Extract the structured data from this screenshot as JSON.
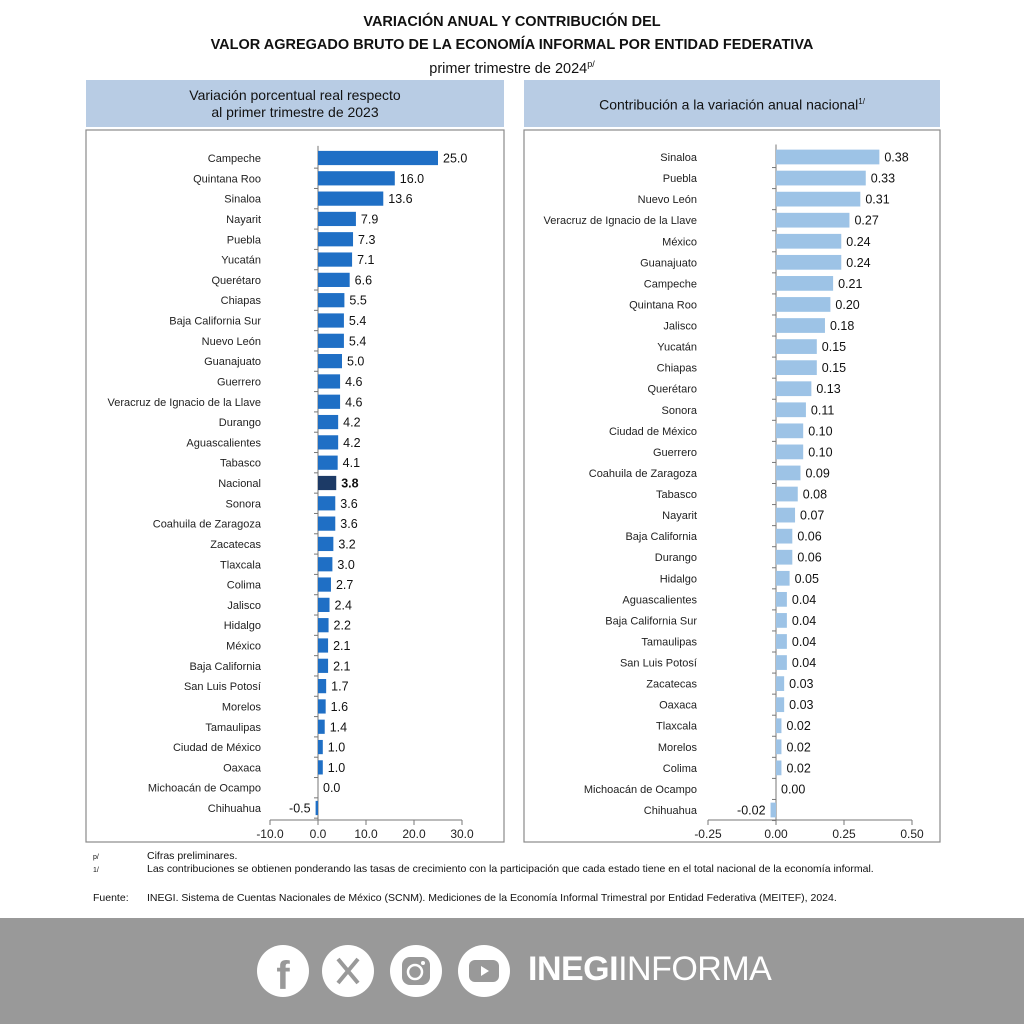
{
  "header": {
    "title_line1": "VARIACIÓN ANUAL Y CONTRIBUCIÓN DEL",
    "title_line2": "VALOR AGREGADO BRUTO DE LA ECONOMÍA INFORMAL POR ENTIDAD FEDERATIVA",
    "subtitle": "primer trimestre de 2024",
    "subtitle_sup": "p/"
  },
  "chart_data": [
    {
      "type": "bar",
      "orientation": "horizontal",
      "title_line1": "Variación porcentual real respecto",
      "title_line2": "al primer trimestre de 2023",
      "xlim": [
        -10,
        30
      ],
      "xticks": [
        -10,
        0,
        10,
        20,
        30
      ],
      "xtick_labels": [
        "-10.0",
        "0.0",
        "10.0",
        "20.0",
        "30.0"
      ],
      "color": "#1f6fc5",
      "highlight_color": "#1c3a66",
      "highlight": "Nacional",
      "categories": [
        "Campeche",
        "Quintana Roo",
        "Sinaloa",
        "Nayarit",
        "Puebla",
        "Yucatán",
        "Querétaro",
        "Chiapas",
        "Baja California Sur",
        "Nuevo León",
        "Guanajuato",
        "Guerrero",
        "Veracruz de Ignacio de la Llave",
        "Durango",
        "Aguascalientes",
        "Tabasco",
        "Nacional",
        "Sonora",
        "Coahuila de Zaragoza",
        "Zacatecas",
        "Tlaxcala",
        "Colima",
        "Jalisco",
        "Hidalgo",
        "México",
        "Baja California",
        "San Luis Potosí",
        "Morelos",
        "Tamaulipas",
        "Ciudad de México",
        "Oaxaca",
        "Michoacán de Ocampo",
        "Chihuahua"
      ],
      "values": [
        25.0,
        16.0,
        13.6,
        7.9,
        7.3,
        7.1,
        6.6,
        5.5,
        5.4,
        5.4,
        5.0,
        4.6,
        4.6,
        4.2,
        4.2,
        4.1,
        3.8,
        3.6,
        3.6,
        3.2,
        3.0,
        2.7,
        2.4,
        2.2,
        2.1,
        2.1,
        1.7,
        1.6,
        1.4,
        1.0,
        1.0,
        0.0,
        -0.5
      ],
      "labels": [
        "25.0",
        "16.0",
        "13.6",
        "7.9",
        "7.3",
        "7.1",
        "6.6",
        "5.5",
        "5.4",
        "5.4",
        "5.0",
        "4.6",
        "4.6",
        "4.2",
        "4.2",
        "4.1",
        "3.8",
        "3.6",
        "3.6",
        "3.2",
        "3.0",
        "2.7",
        "2.4",
        "2.2",
        "2.1",
        "2.1",
        "1.7",
        "1.6",
        "1.4",
        "1.0",
        "1.0",
        "0.0",
        "-0.5"
      ]
    },
    {
      "type": "bar",
      "orientation": "horizontal",
      "title": "Contribución a la variación anual nacional",
      "title_sup": "1/",
      "xlim": [
        -0.25,
        0.5
      ],
      "xticks": [
        -0.25,
        0,
        0.25,
        0.5
      ],
      "xtick_labels": [
        "-0.25",
        "0.00",
        "0.25",
        "0.50"
      ],
      "color": "#9dc3e6",
      "categories": [
        "Sinaloa",
        "Puebla",
        "Nuevo León",
        "Veracruz de Ignacio de la Llave",
        "México",
        "Guanajuato",
        "Campeche",
        "Quintana Roo",
        "Jalisco",
        "Yucatán",
        "Chiapas",
        "Querétaro",
        "Sonora",
        "Ciudad de México",
        "Guerrero",
        "Coahuila de Zaragoza",
        "Tabasco",
        "Nayarit",
        "Baja California",
        "Durango",
        "Hidalgo",
        "Aguascalientes",
        "Baja California Sur",
        "Tamaulipas",
        "San Luis Potosí",
        "Zacatecas",
        "Oaxaca",
        "Tlaxcala",
        "Morelos",
        "Colima",
        "Michoacán de Ocampo",
        "Chihuahua"
      ],
      "values": [
        0.38,
        0.33,
        0.31,
        0.27,
        0.24,
        0.24,
        0.21,
        0.2,
        0.18,
        0.15,
        0.15,
        0.13,
        0.11,
        0.1,
        0.1,
        0.09,
        0.08,
        0.07,
        0.06,
        0.06,
        0.05,
        0.04,
        0.04,
        0.04,
        0.04,
        0.03,
        0.03,
        0.02,
        0.02,
        0.02,
        0.0,
        -0.02
      ],
      "labels": [
        "0.38",
        "0.33",
        "0.31",
        "0.27",
        "0.24",
        "0.24",
        "0.21",
        "0.20",
        "0.18",
        "0.15",
        "0.15",
        "0.13",
        "0.11",
        "0.10",
        "0.10",
        "0.09",
        "0.08",
        "0.07",
        "0.06",
        "0.06",
        "0.05",
        "0.04",
        "0.04",
        "0.04",
        "0.04",
        "0.03",
        "0.03",
        "0.02",
        "0.02",
        "0.02",
        "0.00",
        "-0.02"
      ]
    }
  ],
  "notes": {
    "p_mark": "p/",
    "p_text": "Cifras preliminares.",
    "n1_mark": "1/",
    "n1_text": "Las contribuciones se obtienen ponderando las tasas de crecimiento con la participación que cada estado tiene en el total nacional de la economía informal.",
    "source_label": "Fuente:",
    "source_text": "INEGI. Sistema de Cuentas Nacionales de México (SCNM). Mediciones de la Economía Informal Trimestral por Entidad Federativa (MEITEF), 2024."
  },
  "footer": {
    "brand_bold": "INEGI",
    "brand_light": "INFORMA",
    "icons": [
      "facebook-icon",
      "x-icon",
      "instagram-icon",
      "youtube-icon"
    ]
  }
}
